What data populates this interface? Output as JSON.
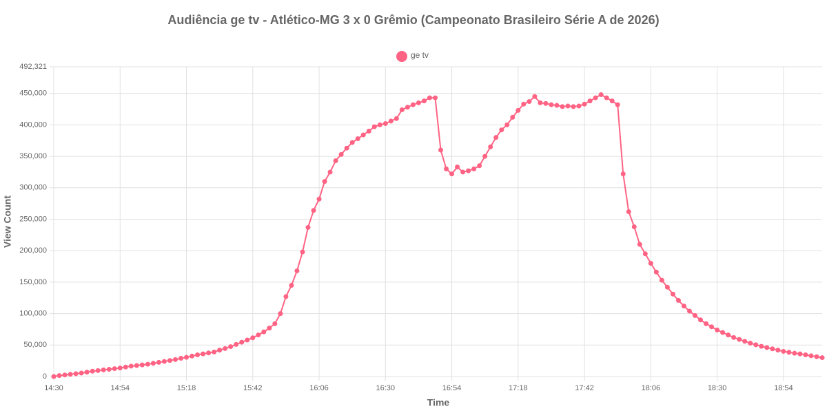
{
  "chart_data": {
    "type": "line",
    "title": "Audiência ge tv - Atlético-MG 3 x 0 Grêmio (Campeonato Brasileiro Série A de 2026)",
    "xlabel": "Time",
    "ylabel": "View Count",
    "grid": true,
    "legend": "top",
    "x": [
      "14:30",
      "14:32",
      "14:34",
      "14:36",
      "14:38",
      "14:40",
      "14:42",
      "14:44",
      "14:46",
      "14:48",
      "14:50",
      "14:52",
      "14:54",
      "14:56",
      "14:58",
      "15:00",
      "15:02",
      "15:04",
      "15:06",
      "15:08",
      "15:10",
      "15:12",
      "15:14",
      "15:16",
      "15:18",
      "15:20",
      "15:22",
      "15:24",
      "15:26",
      "15:28",
      "15:30",
      "15:32",
      "15:34",
      "15:36",
      "15:38",
      "15:40",
      "15:42",
      "15:44",
      "15:46",
      "15:48",
      "15:50",
      "15:52",
      "15:54",
      "15:56",
      "15:58",
      "16:00",
      "16:02",
      "16:04",
      "16:06",
      "16:08",
      "16:10",
      "16:12",
      "16:14",
      "16:16",
      "16:18",
      "16:20",
      "16:22",
      "16:24",
      "16:26",
      "16:28",
      "16:30",
      "16:32",
      "16:34",
      "16:36",
      "16:38",
      "16:40",
      "16:42",
      "16:44",
      "16:46",
      "16:48",
      "16:50",
      "16:52",
      "16:54",
      "16:56",
      "16:58",
      "17:00",
      "17:02",
      "17:04",
      "17:06",
      "17:08",
      "17:10",
      "17:12",
      "17:14",
      "17:16",
      "17:18",
      "17:20",
      "17:22",
      "17:24",
      "17:26",
      "17:28",
      "17:30",
      "17:32",
      "17:34",
      "17:36",
      "17:38",
      "17:40",
      "17:42",
      "17:44",
      "17:46",
      "17:48",
      "17:50",
      "17:52",
      "17:54",
      "17:56",
      "17:58",
      "18:00",
      "18:02",
      "18:04",
      "18:06",
      "18:08",
      "18:10",
      "18:12",
      "18:14",
      "18:16",
      "18:18",
      "18:20",
      "18:22",
      "18:24",
      "18:26",
      "18:28",
      "18:30",
      "18:32",
      "18:34",
      "18:36",
      "18:38",
      "18:40",
      "18:42",
      "18:44",
      "18:46",
      "18:48",
      "18:50",
      "18:52",
      "18:54",
      "18:56",
      "18:58",
      "19:00",
      "19:02",
      "19:04",
      "19:06",
      "19:08"
    ],
    "series": [
      {
        "name": "ge tv",
        "color": "#ff6384",
        "values": [
          0,
          1500,
          2500,
          3500,
          4500,
          5500,
          7000,
          8500,
          9500,
          10500,
          11500,
          12500,
          13500,
          15000,
          16500,
          17500,
          18500,
          19500,
          21000,
          22500,
          24000,
          25500,
          27000,
          29000,
          30500,
          32500,
          34500,
          36000,
          37500,
          39000,
          42000,
          44500,
          47500,
          51000,
          54500,
          58000,
          61500,
          66000,
          71000,
          77000,
          84000,
          100000,
          127000,
          145000,
          168000,
          198000,
          237000,
          264000,
          282000,
          310000,
          325000,
          343000,
          353000,
          363000,
          372000,
          378000,
          384000,
          390000,
          397000,
          400000,
          402000,
          406000,
          410000,
          424000,
          428000,
          432000,
          435000,
          438000,
          443000,
          443000,
          360000,
          330000,
          322000,
          333000,
          325000,
          327000,
          330000,
          335000,
          350000,
          365000,
          380000,
          392000,
          400000,
          412000,
          423000,
          433000,
          437000,
          445000,
          435000,
          434000,
          432000,
          431000,
          429000,
          430000,
          429000,
          430000,
          433000,
          438000,
          443000,
          448000,
          443000,
          438000,
          432000,
          322000,
          262000,
          238000,
          210000,
          195000,
          180000,
          166000,
          153000,
          142000,
          131000,
          121000,
          112000,
          104000,
          97000,
          90000,
          84000,
          79000,
          74000,
          70000,
          66000,
          62000,
          59000,
          56000,
          53000,
          50500,
          48000,
          46000,
          44000,
          42000,
          40000,
          38500,
          37000,
          36000,
          34500,
          33000,
          31500,
          30000
        ]
      }
    ],
    "xlim": [
      "14:30",
      "19:08"
    ],
    "xticks": [
      "14:30",
      "14:54",
      "15:18",
      "15:42",
      "16:06",
      "16:30",
      "16:54",
      "17:18",
      "17:42",
      "18:06",
      "18:30",
      "18:54"
    ],
    "ylim": [
      0,
      492321
    ],
    "yticks": [
      0,
      {
        "value": 50000,
        "label": "50,000"
      },
      {
        "value": 100000,
        "label": "100,000"
      },
      {
        "value": 150000,
        "label": "150,000"
      },
      {
        "value": 200000,
        "label": "200,000"
      },
      {
        "value": 250000,
        "label": "250,000"
      },
      {
        "value": 300000,
        "label": "300,000"
      },
      {
        "value": 350000,
        "label": "350,000"
      },
      {
        "value": 400000,
        "label": "400,000"
      },
      {
        "value": 450000,
        "label": "450,000"
      },
      {
        "value": 492321,
        "label": "492,321"
      }
    ]
  }
}
